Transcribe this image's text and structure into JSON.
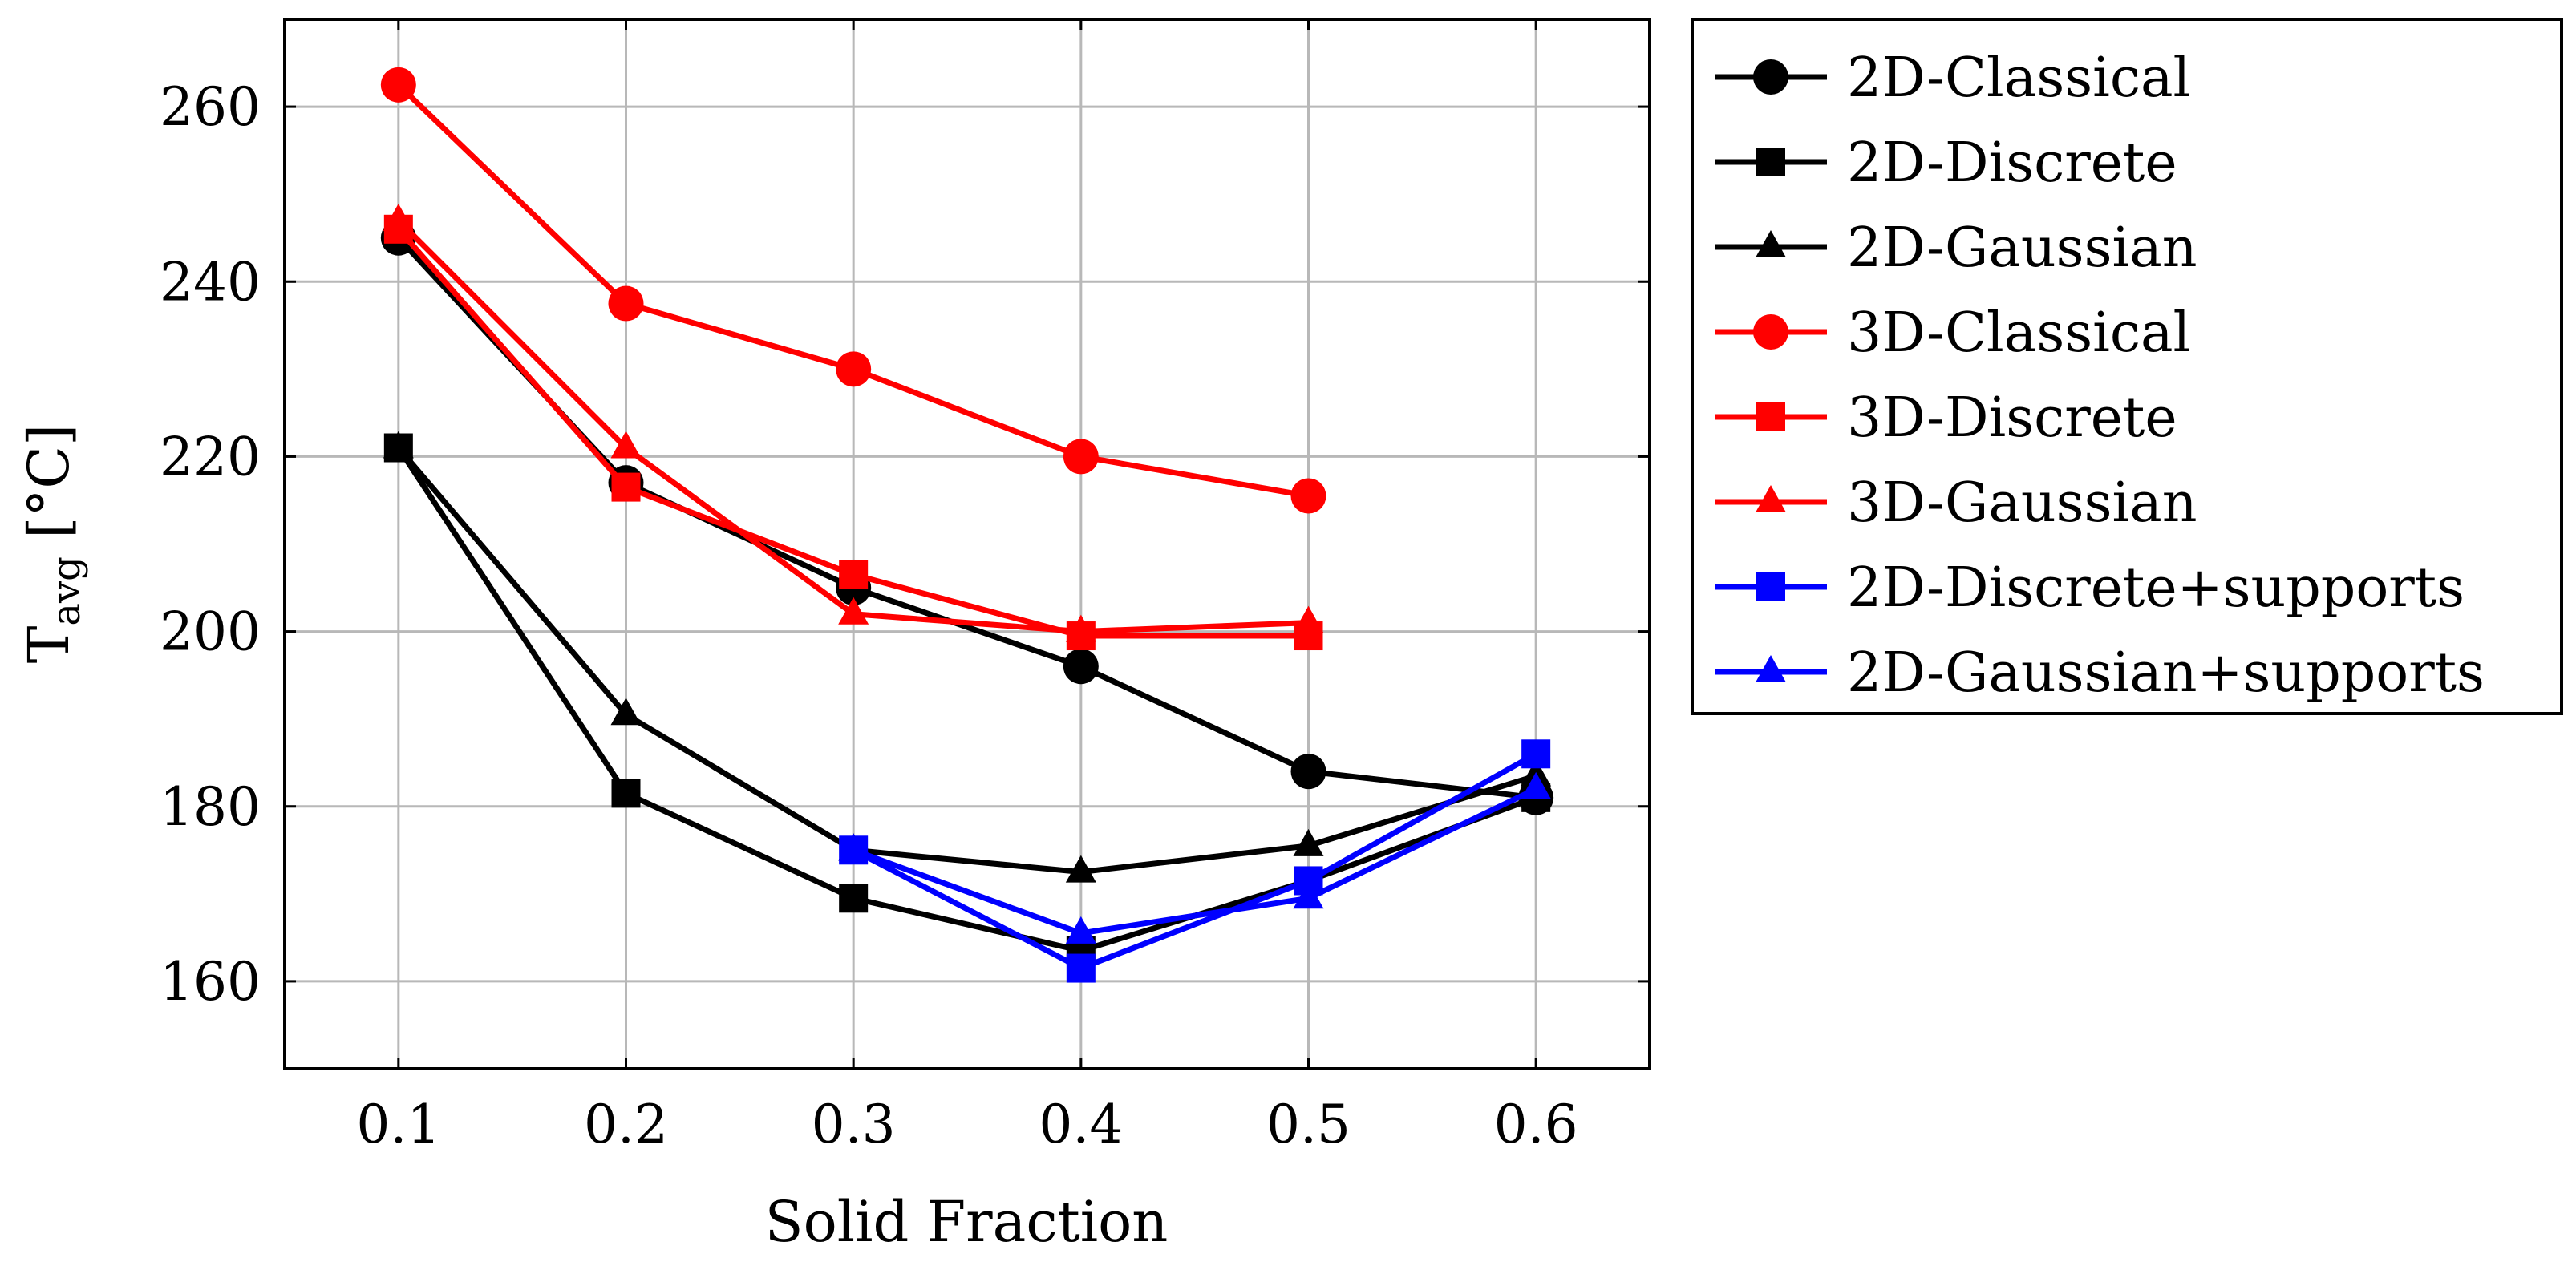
{
  "chart_data": {
    "type": "line",
    "title": "",
    "xlabel": "Solid Fraction",
    "ylabel": "T",
    "ylabel_subscript": "avg",
    "ylabel_unit": " [°C]",
    "xlim": [
      0.05,
      0.65
    ],
    "ylim": [
      150,
      270
    ],
    "grid": true,
    "legend_position": "outside-right-top",
    "x_ticks": [
      0.1,
      0.2,
      0.3,
      0.4,
      0.5,
      0.6
    ],
    "x_tick_labels": [
      "0.1",
      "0.2",
      "0.3",
      "0.4",
      "0.5",
      "0.6"
    ],
    "y_ticks": [
      160,
      180,
      200,
      220,
      240,
      260
    ],
    "y_tick_labels": [
      "160",
      "180",
      "200",
      "220",
      "240",
      "260"
    ],
    "series": [
      {
        "name": "2D-Classical",
        "color": "#000000",
        "marker": "circle",
        "x": [
          0.1,
          0.2,
          0.3,
          0.4,
          0.5,
          0.6
        ],
        "values": [
          245,
          217,
          205,
          196,
          184,
          181
        ]
      },
      {
        "name": "2D-Discrete",
        "color": "#000000",
        "marker": "square",
        "x": [
          0.1,
          0.2,
          0.3,
          0.4,
          0.5,
          0.6
        ],
        "values": [
          221,
          181.5,
          169.5,
          163.5,
          171.5,
          181
        ]
      },
      {
        "name": "2D-Gaussian",
        "color": "#000000",
        "marker": "triangle",
        "x": [
          0.1,
          0.2,
          0.3,
          0.4,
          0.5,
          0.6
        ],
        "values": [
          221,
          190.5,
          175,
          172.5,
          175.5,
          183.5
        ]
      },
      {
        "name": "3D-Classical",
        "color": "#ff0000",
        "marker": "circle",
        "x": [
          0.1,
          0.2,
          0.3,
          0.4,
          0.5
        ],
        "values": [
          262.5,
          237.5,
          230,
          220,
          215.5
        ]
      },
      {
        "name": "3D-Discrete",
        "color": "#ff0000",
        "marker": "square",
        "x": [
          0.1,
          0.2,
          0.3,
          0.4,
          0.5
        ],
        "values": [
          246,
          216.5,
          206.5,
          199.5,
          199.5
        ]
      },
      {
        "name": "3D-Gaussian",
        "color": "#ff0000",
        "marker": "triangle",
        "x": [
          0.1,
          0.2,
          0.3,
          0.4,
          0.5
        ],
        "values": [
          247,
          221,
          202,
          200,
          201
        ]
      },
      {
        "name": "2D-Discrete+supports",
        "color": "#0000ff",
        "marker": "square",
        "x": [
          0.3,
          0.4,
          0.5,
          0.6
        ],
        "values": [
          175,
          161.5,
          171.5,
          186
        ]
      },
      {
        "name": "2D-Gaussian+supports",
        "color": "#0000ff",
        "marker": "triangle",
        "x": [
          0.3,
          0.4,
          0.5,
          0.6
        ],
        "values": [
          175,
          165.5,
          169.5,
          182
        ]
      }
    ]
  }
}
